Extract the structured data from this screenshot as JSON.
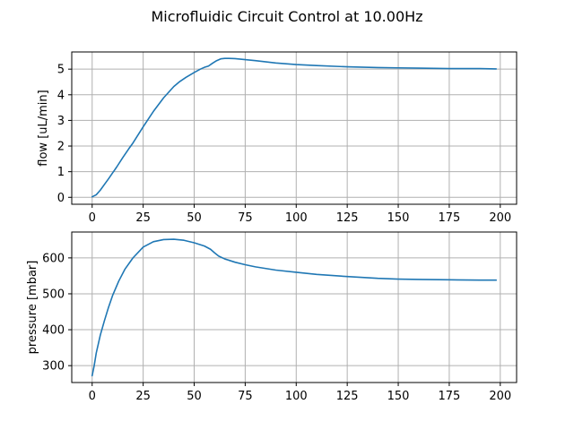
{
  "figure": {
    "title": "Microfluidic Circuit Control at 10.00Hz"
  },
  "chart_data": [
    {
      "type": "line",
      "xlabel": "",
      "ylabel": "flow [uL/min]",
      "xlim": [
        -10,
        208
      ],
      "ylim": [
        -0.27,
        5.67
      ],
      "xticks": [
        0,
        25,
        50,
        75,
        100,
        125,
        150,
        175,
        200
      ],
      "yticks": [
        0,
        1,
        2,
        3,
        4,
        5
      ],
      "grid": true,
      "color": "#1f77b4",
      "series": [
        {
          "x": [
            0,
            2,
            4,
            6,
            8,
            10,
            12,
            15,
            18,
            20,
            25,
            30,
            35,
            40,
            43,
            46,
            50,
            53,
            55,
            57,
            59,
            61,
            63,
            65,
            67,
            70,
            75,
            80,
            90,
            100,
            110,
            125,
            140,
            150,
            160,
            175,
            190,
            198
          ],
          "y": [
            0.02,
            0.1,
            0.28,
            0.5,
            0.72,
            0.95,
            1.18,
            1.55,
            1.9,
            2.12,
            2.75,
            3.35,
            3.88,
            4.32,
            4.52,
            4.68,
            4.87,
            5.0,
            5.07,
            5.12,
            5.23,
            5.33,
            5.4,
            5.42,
            5.42,
            5.41,
            5.37,
            5.33,
            5.24,
            5.18,
            5.14,
            5.09,
            5.06,
            5.05,
            5.04,
            5.02,
            5.02,
            5.01
          ]
        }
      ]
    },
    {
      "type": "line",
      "xlabel": "",
      "ylabel": "pressure [mbar]",
      "xlim": [
        -10,
        208
      ],
      "ylim": [
        253,
        672
      ],
      "xticks": [
        0,
        25,
        50,
        75,
        100,
        125,
        150,
        175,
        200
      ],
      "yticks": [
        300,
        400,
        500,
        600
      ],
      "grid": true,
      "color": "#1f77b4",
      "series": [
        {
          "x": [
            0,
            1,
            2,
            4,
            6,
            8,
            10,
            13,
            16,
            20,
            25,
            30,
            35,
            40,
            45,
            50,
            55,
            58,
            60,
            62,
            65,
            70,
            75,
            80,
            90,
            100,
            110,
            125,
            140,
            150,
            160,
            175,
            190,
            198
          ],
          "y": [
            272,
            300,
            335,
            385,
            425,
            462,
            495,
            535,
            568,
            600,
            630,
            645,
            651,
            652,
            649,
            642,
            633,
            624,
            614,
            605,
            597,
            588,
            581,
            575,
            566,
            560,
            554,
            548,
            543,
            541,
            540,
            539,
            538,
            538
          ]
        }
      ]
    }
  ]
}
